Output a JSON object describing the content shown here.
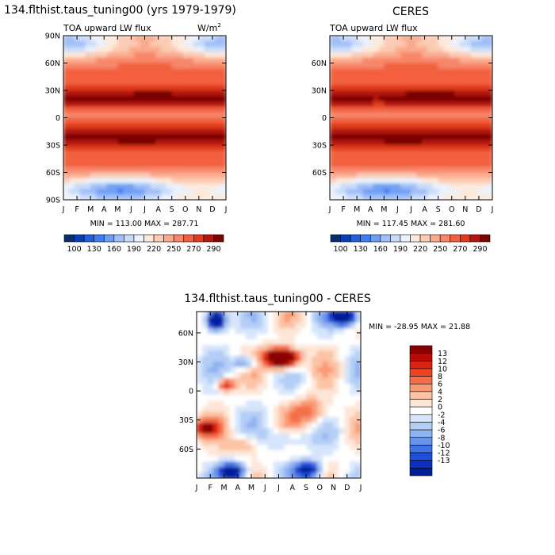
{
  "top_left": {
    "title": "134.flthist.taus_tuning00 (yrs 1979-1979)",
    "variable": "TOA upward LW flux",
    "units_base": "W/m",
    "units_exp": "2",
    "stats": "MIN = 113.00 MAX = 287.71"
  },
  "top_right": {
    "title": "CERES",
    "variable": "TOA upward LW flux",
    "stats": "MIN = 117.45 MAX = 281.60"
  },
  "bottom": {
    "title": "134.flthist.taus_tuning00 - CERES",
    "stats": "MIN = -28.95 MAX =  21.88"
  },
  "months": [
    "J",
    "F",
    "M",
    "A",
    "M",
    "J",
    "J",
    "A",
    "S",
    "O",
    "N",
    "D",
    "J"
  ],
  "lat_ticks_full": [
    "90N",
    "60N",
    "30N",
    "0",
    "30S",
    "60S",
    "90S"
  ],
  "lat_ticks_inner": [
    "60N",
    "30N",
    "0",
    "30S",
    "60S"
  ],
  "abs_colorbar": {
    "labels": [
      "100",
      "130",
      "160",
      "190",
      "220",
      "250",
      "270",
      "290"
    ],
    "colors": [
      "#08306b",
      "#0a3fb5",
      "#1f5fe0",
      "#3f7ff0",
      "#6f9ff4",
      "#9fbff7",
      "#c8dbf9",
      "#eaf2fd",
      "#fde9dc",
      "#fccbb4",
      "#fbab8d",
      "#f7876a",
      "#f2603f",
      "#e03a1f",
      "#b3180e",
      "#7a0603"
    ]
  },
  "diff_colorbar": {
    "labels": [
      "13",
      "12",
      "10",
      "8",
      "6",
      "4",
      "2",
      "0",
      "-2",
      "-4",
      "-6",
      "-8",
      "-10",
      "-12",
      "-13"
    ],
    "colors": [
      "#8b0000",
      "#b80a06",
      "#d92211",
      "#ee4423",
      "#f66e48",
      "#f99a74",
      "#fcc3a5",
      "#fde6d8",
      "#ffffff",
      "#d6e5fb",
      "#b3cdf6",
      "#8fb2f0",
      "#6894ec",
      "#4272e6",
      "#1f4fdd",
      "#0b2fc4",
      "#001e96"
    ]
  },
  "chart_data": [
    {
      "type": "heatmap",
      "name": "model",
      "title": "134.flthist.taus_tuning00 (yrs 1979-1979)",
      "variable": "TOA upward LW flux",
      "units": "W/m2",
      "x": [
        "J",
        "F",
        "M",
        "A",
        "M",
        "J",
        "J",
        "A",
        "S",
        "O",
        "N",
        "D",
        "J"
      ],
      "y": [
        90,
        60,
        30,
        0,
        -30,
        -60,
        -90
      ],
      "zlim": [
        113.0,
        287.71
      ],
      "contour_levels": [
        100,
        130,
        160,
        190,
        220,
        250,
        270,
        290
      ]
    },
    {
      "type": "heatmap",
      "name": "ceres",
      "title": "CERES",
      "variable": "TOA upward LW flux",
      "units": "W/m2",
      "x": [
        "J",
        "F",
        "M",
        "A",
        "M",
        "J",
        "J",
        "A",
        "S",
        "O",
        "N",
        "D",
        "J"
      ],
      "y": [
        60,
        30,
        0,
        -30,
        -60
      ],
      "zlim": [
        117.45,
        281.6
      ],
      "contour_levels": [
        100,
        130,
        160,
        190,
        220,
        250,
        270,
        290
      ]
    },
    {
      "type": "heatmap",
      "name": "difference",
      "title": "134.flthist.taus_tuning00 - CERES",
      "x": [
        "J",
        "F",
        "M",
        "A",
        "M",
        "J",
        "J",
        "A",
        "S",
        "O",
        "N",
        "D",
        "J"
      ],
      "y": [
        60,
        30,
        0,
        -30,
        -60
      ],
      "zlim": [
        -28.95,
        21.88
      ],
      "contour_levels": [
        -13,
        -12,
        -10,
        -8,
        -6,
        -4,
        -2,
        0,
        2,
        4,
        6,
        8,
        10,
        12,
        13
      ]
    }
  ]
}
